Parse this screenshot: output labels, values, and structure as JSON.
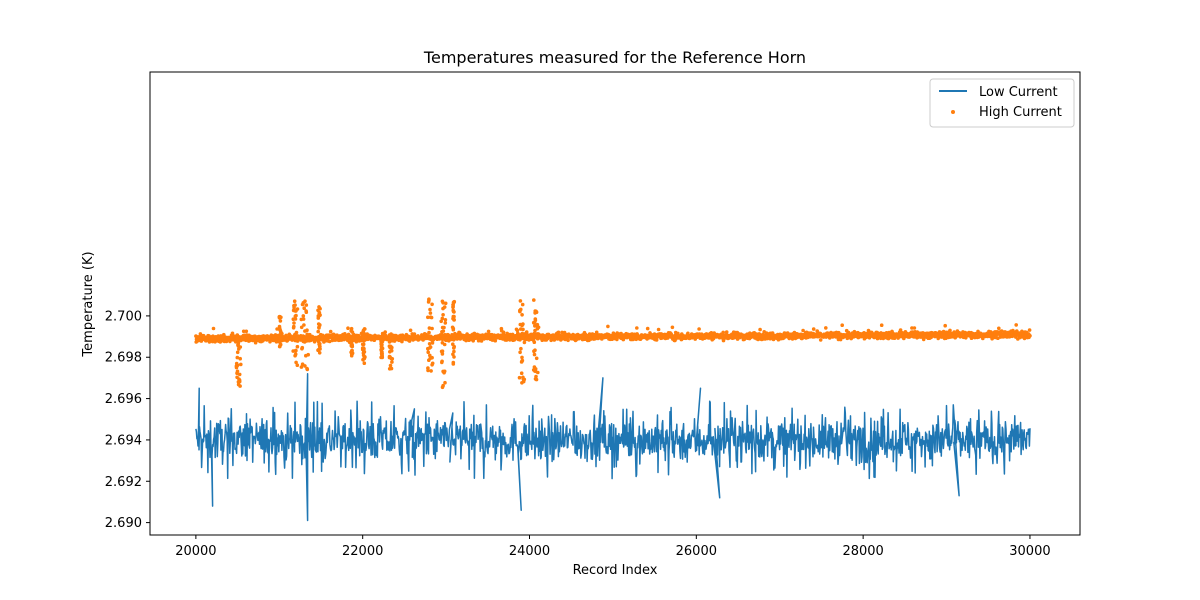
{
  "chart_data": {
    "type": "line",
    "title": "Temperatures measured for the Reference Horn",
    "xlabel": "Record Index",
    "ylabel": "Temperature (K)",
    "xlim": [
      19450,
      30600
    ],
    "ylim": [
      2.6894,
      2.7118
    ],
    "xticks": [
      20000,
      22000,
      24000,
      26000,
      28000,
      30000
    ],
    "yticks": [
      2.69,
      2.692,
      2.694,
      2.696,
      2.698,
      2.7
    ],
    "legend": {
      "placement": "top-right",
      "entries": [
        {
          "label": "Low Current",
          "marker": "line",
          "color": "#1f77b4"
        },
        {
          "label": "High Current",
          "marker": "dot",
          "color": "#ff7f0e"
        }
      ]
    },
    "grid": false,
    "series": [
      {
        "name": "Low Current",
        "type": "line",
        "color": "#1f77b4",
        "x_range": [
          20000,
          30000
        ],
        "points": 10000,
        "baseline": 2.694,
        "typical_min": 2.6928,
        "typical_max": 2.6953,
        "overall_min": 2.6901,
        "overall_max": 2.6972,
        "notable_extremes": [
          {
            "x": 20040,
            "y": 2.6965
          },
          {
            "x": 20200,
            "y": 2.6908
          },
          {
            "x": 21340,
            "y": 2.6972
          },
          {
            "x": 21340,
            "y": 2.6901
          },
          {
            "x": 22620,
            "y": 2.6955
          },
          {
            "x": 23080,
            "y": 2.6953
          },
          {
            "x": 23900,
            "y": 2.6906
          },
          {
            "x": 24880,
            "y": 2.697
          },
          {
            "x": 26050,
            "y": 2.6965
          },
          {
            "x": 26280,
            "y": 2.6912
          },
          {
            "x": 29150,
            "y": 2.6913
          }
        ]
      },
      {
        "name": "High Current",
        "type": "scatter",
        "color": "#ff7f0e",
        "x_range": [
          20000,
          30000
        ],
        "points": 10000,
        "baseline_start": 2.6989,
        "baseline_end": 2.6991,
        "overall_min": 2.6965,
        "overall_max": 2.7011,
        "bursts": [
          {
            "x_start": 20480,
            "x_end": 20540,
            "low": 2.6966,
            "high": 2.699
          },
          {
            "x_start": 21000,
            "x_end": 21020,
            "low": 2.6985,
            "high": 2.7
          },
          {
            "x_start": 21160,
            "x_end": 21220,
            "low": 2.6976,
            "high": 2.7008
          },
          {
            "x_start": 21260,
            "x_end": 21350,
            "low": 2.6974,
            "high": 2.7009
          },
          {
            "x_start": 21460,
            "x_end": 21490,
            "low": 2.6982,
            "high": 2.7005
          },
          {
            "x_start": 21860,
            "x_end": 21880,
            "low": 2.698,
            "high": 2.6994
          },
          {
            "x_start": 22000,
            "x_end": 22030,
            "low": 2.6976,
            "high": 2.6995
          },
          {
            "x_start": 22220,
            "x_end": 22240,
            "low": 2.6979,
            "high": 2.6992
          },
          {
            "x_start": 22320,
            "x_end": 22360,
            "low": 2.6974,
            "high": 2.6992
          },
          {
            "x_start": 22780,
            "x_end": 22840,
            "low": 2.6973,
            "high": 2.7009
          },
          {
            "x_start": 22940,
            "x_end": 23000,
            "low": 2.6965,
            "high": 2.7009
          },
          {
            "x_start": 23080,
            "x_end": 23100,
            "low": 2.6976,
            "high": 2.7011
          },
          {
            "x_start": 23880,
            "x_end": 23940,
            "low": 2.6967,
            "high": 2.7009
          },
          {
            "x_start": 24050,
            "x_end": 24100,
            "low": 2.6967,
            "high": 2.7009
          }
        ]
      }
    ]
  }
}
